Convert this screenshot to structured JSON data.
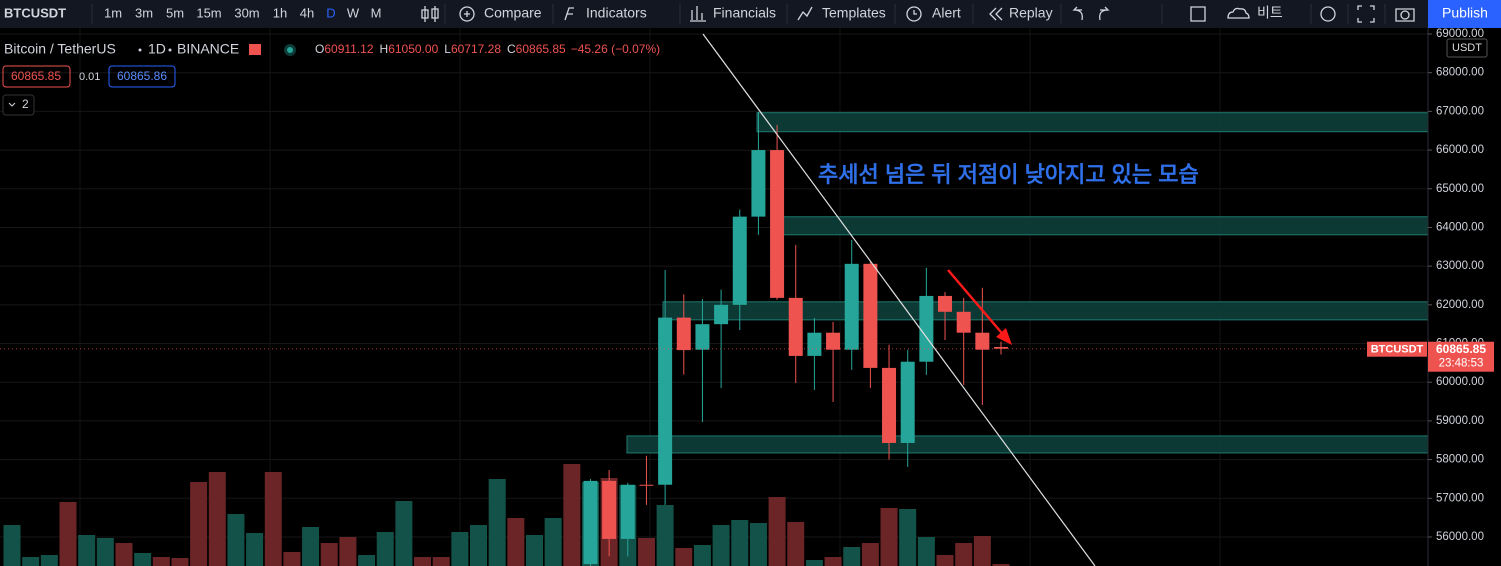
{
  "toolbar": {
    "symbol": "BTCUSDT",
    "intervals": [
      "1m",
      "3m",
      "5m",
      "15m",
      "30m",
      "1h",
      "4h",
      "D",
      "W",
      "M"
    ],
    "active_interval": 7,
    "buttons": [
      "Compare",
      "Indicators",
      "Financials",
      "Templates",
      "Alert",
      "Replay"
    ],
    "layout_name": "비트",
    "publish": "Publish"
  },
  "legend": {
    "symbol_name": "Bitcoin / TetherUS",
    "interval": "1D",
    "exchange": "BINANCE",
    "ohlc": [
      {
        "label": "O",
        "value": "60911.12"
      },
      {
        "label": "H",
        "value": "61050.00"
      },
      {
        "label": "L",
        "value": "60717.28"
      },
      {
        "label": "C",
        "value": "60865.85"
      }
    ],
    "change": "−45.26 (−0.07%)",
    "sell": "60865.85",
    "spread": "0.01",
    "buy": "60865.86",
    "indicators": "2"
  },
  "price_axis": {
    "currency": "USDT",
    "ylim": [
      55250,
      69000
    ],
    "yticks": [
      {
        "value": 56000,
        "label": "56000.00"
      },
      {
        "value": 57000,
        "label": "57000.00"
      },
      {
        "value": 58000,
        "label": "58000.00"
      },
      {
        "value": 59000,
        "label": "59000.00"
      },
      {
        "value": 60000,
        "label": "60000.00"
      },
      {
        "value": 61000,
        "label": "61000.00"
      },
      {
        "value": 62000,
        "label": "62000.00"
      },
      {
        "value": 63000,
        "label": "63000.00"
      },
      {
        "value": 64000,
        "label": "64000.00"
      },
      {
        "value": 65000,
        "label": "65000.00"
      },
      {
        "value": 66000,
        "label": "66000.00"
      },
      {
        "value": 67000,
        "label": "67000.00"
      },
      {
        "value": 68000,
        "label": "68000.00"
      },
      {
        "value": 69000,
        "label": "69000.00"
      }
    ],
    "last_symbol": "BTCUSDT",
    "last_price": {
      "value": 60865.85,
      "label": "60865.85"
    },
    "countdown": "23:48:53"
  },
  "chart": {
    "type": "candlestick",
    "candles": {
      "open": [
        55300,
        57450,
        55950,
        57350,
        57350,
        61670,
        60840,
        61500,
        62000,
        64280,
        66000,
        62180,
        60680,
        61280,
        60840,
        63060,
        60370,
        58430,
        60530,
        62230,
        61820,
        61280,
        60911.12
      ],
      "high": [
        57500,
        57730,
        57400,
        58100,
        62900,
        62270,
        62150,
        62390,
        64460,
        66990,
        66650,
        63550,
        61660,
        61560,
        63680,
        63110,
        60970,
        60840,
        62960,
        62330,
        62180,
        62440,
        61050
      ],
      "low": [
        55000,
        55500,
        55500,
        56830,
        56830,
        60200,
        58970,
        59850,
        61350,
        63810,
        62130,
        59980,
        59800,
        59490,
        60320,
        59850,
        58000,
        57810,
        60190,
        61090,
        59930,
        59410,
        60717.28
      ],
      "close": [
        57450,
        55950,
        57350,
        57330,
        61670,
        60830,
        61500,
        62000,
        64280,
        66000,
        62180,
        60680,
        61280,
        60840,
        63060,
        60370,
        58430,
        60530,
        62230,
        61820,
        61280,
        60840,
        60865.85
      ]
    },
    "volume": {
      "values": [
        41,
        9,
        11,
        64,
        31,
        28,
        23,
        13,
        9,
        8,
        84,
        94,
        52,
        33,
        94,
        14,
        39,
        23,
        29,
        11,
        34,
        65,
        9,
        9,
        34,
        41,
        87,
        48,
        31,
        48,
        102,
        84,
        88,
        81,
        28,
        61,
        18,
        21,
        41,
        46,
        43,
        69,
        44,
        6,
        9,
        19,
        23,
        58,
        57,
        29,
        11,
        23,
        30,
        2
      ],
      "up": [
        true,
        true,
        true,
        false,
        true,
        true,
        false,
        true,
        false,
        false,
        false,
        false,
        true,
        true,
        false,
        false,
        true,
        false,
        false,
        true,
        true,
        true,
        false,
        false,
        true,
        true,
        true,
        false,
        true,
        true,
        false,
        true,
        false,
        true,
        false,
        true,
        false,
        true,
        true,
        true,
        true,
        false,
        false,
        true,
        false,
        true,
        false,
        false,
        true,
        true,
        false,
        false,
        false,
        false
      ]
    },
    "zones": [
      {
        "top": 66966,
        "bottom": 66474
      },
      {
        "top": 64276,
        "bottom": 63810
      },
      {
        "top": 62078,
        "bottom": 61612
      },
      {
        "top": 58612,
        "bottom": 58172
      }
    ],
    "annotation": "추세선 넘은 뒤 저점이 낮아지고 있는 모습"
  }
}
